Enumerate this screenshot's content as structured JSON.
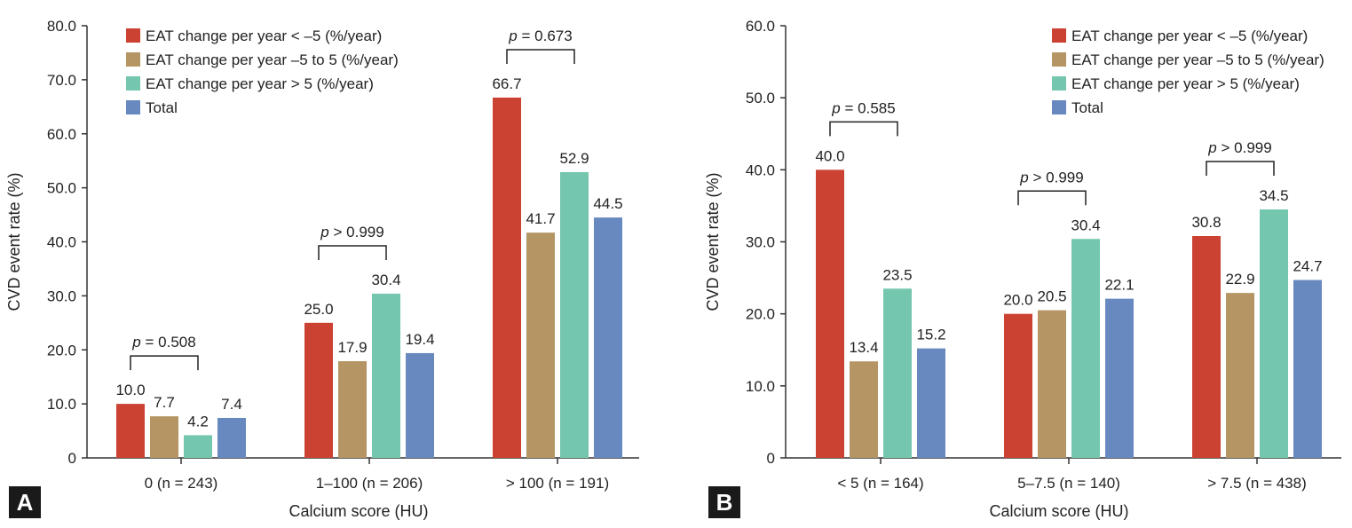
{
  "colors": {
    "s1": "#cc4232",
    "s2": "#b59563",
    "s3": "#74c7ae",
    "s4": "#6889bf",
    "axis": "#333333"
  },
  "panels": {
    "a": {
      "letter": "A"
    },
    "b": {
      "letter": "B"
    }
  },
  "chart_data": [
    {
      "type": "bar",
      "panel": "A",
      "xlabel": "Calcium score (HU)",
      "ylabel": "CVD event rate (%)",
      "ylim": [
        0,
        80
      ],
      "yticks": [
        0,
        10,
        20,
        30,
        40,
        50,
        60,
        70,
        80
      ],
      "ytick_labels": [
        "0",
        "10.0",
        "20.0",
        "30.0",
        "40.0",
        "50.0",
        "60.0",
        "70.0",
        "80.0"
      ],
      "legend_position": "top-left",
      "categories": [
        "0 (n = 243)",
        "1–100 (n = 206)",
        "> 100 (n = 191)"
      ],
      "series": [
        {
          "name": "EAT change per year < –5 (%/year)",
          "values": [
            10.0,
            25.0,
            66.7
          ],
          "labels": [
            "10.0",
            "25.0",
            "66.7"
          ]
        },
        {
          "name": "EAT change per year –5 to 5 (%/year)",
          "values": [
            7.7,
            17.9,
            41.7
          ],
          "labels": [
            "7.7",
            "17.9",
            "41.7"
          ]
        },
        {
          "name": "EAT change per year > 5 (%/year)",
          "values": [
            4.2,
            30.4,
            52.9
          ],
          "labels": [
            "4.2",
            "30.4",
            "52.9"
          ]
        },
        {
          "name": "Total",
          "values": [
            7.4,
            19.4,
            44.5
          ],
          "labels": [
            "7.4",
            "19.4",
            "44.5"
          ]
        }
      ],
      "annotations": [
        {
          "p_symbol": "p",
          "text": " = 0.508",
          "category": 0
        },
        {
          "p_symbol": "p",
          "text": " > 0.999",
          "category": 1
        },
        {
          "p_symbol": "p",
          "text": " = 0.673",
          "category": 2
        }
      ]
    },
    {
      "type": "bar",
      "panel": "B",
      "xlabel": "Calcium score (HU)",
      "ylabel": "CVD event rate (%)",
      "ylim": [
        0,
        60
      ],
      "yticks": [
        0,
        10,
        20,
        30,
        40,
        50,
        60
      ],
      "ytick_labels": [
        "0",
        "10.0",
        "20.0",
        "30.0",
        "40.0",
        "50.0",
        "60.0"
      ],
      "legend_position": "top-right",
      "categories": [
        "< 5 (n = 164)",
        "5–7.5 (n = 140)",
        "> 7.5 (n = 438)"
      ],
      "series": [
        {
          "name": "EAT change per year < –5 (%/year)",
          "values": [
            40.0,
            20.0,
            30.8
          ],
          "labels": [
            "40.0",
            "20.0",
            "30.8"
          ]
        },
        {
          "name": "EAT change per year –5 to 5 (%/year)",
          "values": [
            13.4,
            20.5,
            22.9
          ],
          "labels": [
            "13.4",
            "20.5",
            "22.9"
          ]
        },
        {
          "name": "EAT change per year > 5 (%/year)",
          "values": [
            23.5,
            30.4,
            34.5
          ],
          "labels": [
            "23.5",
            "30.4",
            "34.5"
          ]
        },
        {
          "name": "Total",
          "values": [
            15.2,
            22.1,
            24.7
          ],
          "labels": [
            "15.2",
            "22.1",
            "24.7"
          ]
        }
      ],
      "annotations": [
        {
          "p_symbol": "p",
          "text": " = 0.585",
          "category": 0
        },
        {
          "p_symbol": "p",
          "text": " > 0.999",
          "category": 1
        },
        {
          "p_symbol": "p",
          "text": " > 0.999",
          "category": 2
        }
      ]
    }
  ]
}
